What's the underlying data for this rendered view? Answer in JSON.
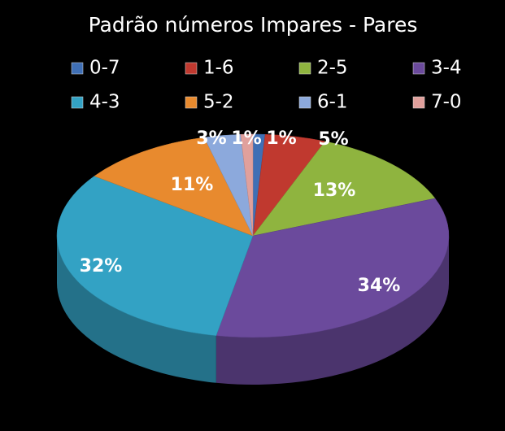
{
  "chart_data": {
    "type": "pie",
    "title": "Padrão números Impares - Pares",
    "categories": [
      "0-7",
      "1-6",
      "2-5",
      "3-4",
      "4-3",
      "5-2",
      "6-1",
      "7-0"
    ],
    "values": [
      1,
      5,
      13,
      34,
      32,
      11,
      3,
      1
    ],
    "value_labels": [
      "1%",
      "5%",
      "13%",
      "34%",
      "32%",
      "11%",
      "3%",
      "1%"
    ],
    "colors": [
      "#3f6fb5",
      "#c0392f",
      "#8fb43f",
      "#6b4a9c",
      "#33a2c4",
      "#e88a2e",
      "#8ca9dc",
      "#e0a09c"
    ]
  }
}
